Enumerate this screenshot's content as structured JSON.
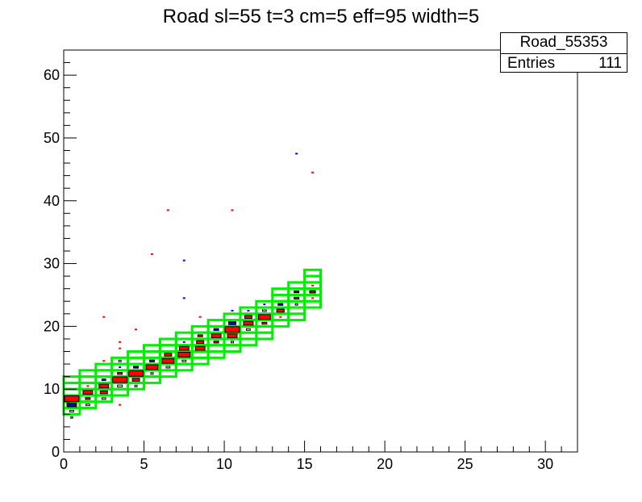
{
  "title": "Road sl=55 t=3 cm=5 eff=95 width=5",
  "stats": {
    "name": "Road_55353",
    "entries_label": "Entries",
    "entries_value": "111"
  },
  "colors": {
    "road": "#00ee00",
    "red": "#ff0000",
    "blue": "#0000ff",
    "frame": "#000000"
  },
  "chart_data": {
    "type": "heatmap",
    "title": "Road sl=55 t=3 cm=5 eff=95 width=5",
    "xlabel": "",
    "ylabel": "",
    "xlim": [
      0,
      32
    ],
    "ylim": [
      0,
      64
    ],
    "x_ticks": [
      0,
      5,
      10,
      15,
      20,
      25,
      30
    ],
    "y_ticks": [
      0,
      10,
      20,
      30,
      40,
      50,
      60
    ],
    "road_boxes": [
      {
        "x": 0.5,
        "y_low": 6.5,
        "y_high": 12.5
      },
      {
        "x": 1.5,
        "y_low": 7.5,
        "y_high": 13.5
      },
      {
        "x": 2.5,
        "y_low": 8.5,
        "y_high": 14.5
      },
      {
        "x": 3.5,
        "y_low": 9.5,
        "y_high": 15.5
      },
      {
        "x": 4.5,
        "y_low": 10.5,
        "y_high": 16.5
      },
      {
        "x": 5.5,
        "y_low": 11.5,
        "y_high": 17.5
      },
      {
        "x": 6.5,
        "y_low": 12.5,
        "y_high": 18.5
      },
      {
        "x": 7.5,
        "y_low": 13.5,
        "y_high": 19.5
      },
      {
        "x": 8.5,
        "y_low": 14.5,
        "y_high": 20.5
      },
      {
        "x": 9.5,
        "y_low": 15.5,
        "y_high": 21.5
      },
      {
        "x": 10.5,
        "y_low": 16.5,
        "y_high": 22.5
      },
      {
        "x": 11.5,
        "y_low": 17.5,
        "y_high": 23.5
      },
      {
        "x": 12.5,
        "y_low": 18.5,
        "y_high": 24.5
      },
      {
        "x": 13.5,
        "y_low": 20.5,
        "y_high": 26.5
      },
      {
        "x": 14.5,
        "y_low": 21.5,
        "y_high": 27.5
      },
      {
        "x": 15.5,
        "y_low": 23.5,
        "y_high": 29.5
      }
    ],
    "hits_red": [
      {
        "x": 0.5,
        "y": 8.5,
        "w": 3
      },
      {
        "x": 0.5,
        "y": 7.5,
        "w": 2
      },
      {
        "x": 1.5,
        "y": 9.5,
        "w": 2
      },
      {
        "x": 1.5,
        "y": 8.5,
        "w": 1
      },
      {
        "x": 1.5,
        "y": 10.5,
        "w": 0.5
      },
      {
        "x": 2.5,
        "y": 10.5,
        "w": 2
      },
      {
        "x": 2.5,
        "y": 9.5,
        "w": 1.5
      },
      {
        "x": 2.5,
        "y": 14.5,
        "w": 0.5
      },
      {
        "x": 2.5,
        "y": 21.5,
        "w": 0.5
      },
      {
        "x": 3.5,
        "y": 11.5,
        "w": 3
      },
      {
        "x": 3.5,
        "y": 12.5,
        "w": 1
      },
      {
        "x": 3.5,
        "y": 16.5,
        "w": 0.5
      },
      {
        "x": 3.5,
        "y": 17.5,
        "w": 0.5
      },
      {
        "x": 3.5,
        "y": 7.5,
        "w": 0.5
      },
      {
        "x": 4.5,
        "y": 12.5,
        "w": 3
      },
      {
        "x": 4.5,
        "y": 11.5,
        "w": 1.5
      },
      {
        "x": 4.5,
        "y": 19.5,
        "w": 0.5
      },
      {
        "x": 5.5,
        "y": 13.5,
        "w": 2.5
      },
      {
        "x": 5.5,
        "y": 31.5,
        "w": 0.5
      },
      {
        "x": 6.5,
        "y": 14.5,
        "w": 2.5
      },
      {
        "x": 6.5,
        "y": 15.5,
        "w": 1.5
      },
      {
        "x": 6.5,
        "y": 38.5,
        "w": 0.5
      },
      {
        "x": 7.5,
        "y": 15.5,
        "w": 2.5
      },
      {
        "x": 7.5,
        "y": 16.5,
        "w": 2
      },
      {
        "x": 8.5,
        "y": 16.5,
        "w": 2
      },
      {
        "x": 8.5,
        "y": 17.5,
        "w": 1.5
      },
      {
        "x": 8.5,
        "y": 18.5,
        "w": 1
      },
      {
        "x": 8.5,
        "y": 21.5,
        "w": 0.5
      },
      {
        "x": 9.5,
        "y": 18.5,
        "w": 2
      },
      {
        "x": 9.5,
        "y": 17.5,
        "w": 1
      },
      {
        "x": 10.5,
        "y": 19.5,
        "w": 3
      },
      {
        "x": 10.5,
        "y": 18.5,
        "w": 2
      },
      {
        "x": 10.5,
        "y": 38.5,
        "w": 0.5
      },
      {
        "x": 11.5,
        "y": 20.5,
        "w": 2
      },
      {
        "x": 11.5,
        "y": 21.5,
        "w": 1.5
      },
      {
        "x": 12.5,
        "y": 21.5,
        "w": 2.5
      },
      {
        "x": 12.5,
        "y": 20.5,
        "w": 1
      },
      {
        "x": 13.5,
        "y": 22.5,
        "w": 1.5
      },
      {
        "x": 13.5,
        "y": 21.5,
        "w": 0.5
      },
      {
        "x": 14.5,
        "y": 24.5,
        "w": 1
      },
      {
        "x": 15.5,
        "y": 25.5,
        "w": 1
      },
      {
        "x": 15.5,
        "y": 26.5,
        "w": 0.5
      },
      {
        "x": 15.5,
        "y": 24.5,
        "w": 0.5
      },
      {
        "x": 15.5,
        "y": 44.5,
        "w": 0.5
      }
    ],
    "hits_blue": [
      {
        "x": 0.5,
        "y": 7.5,
        "w": 1.5
      },
      {
        "x": 2.5,
        "y": 11.5,
        "w": 0.5
      },
      {
        "x": 3.5,
        "y": 13.5,
        "w": 0.5
      },
      {
        "x": 4.5,
        "y": 13.5,
        "w": 1
      },
      {
        "x": 5.5,
        "y": 14.5,
        "w": 1
      },
      {
        "x": 7.5,
        "y": 17.5,
        "w": 0.5
      },
      {
        "x": 7.5,
        "y": 24.5,
        "w": 0.5
      },
      {
        "x": 7.5,
        "y": 30.5,
        "w": 0.5
      },
      {
        "x": 9.5,
        "y": 19.5,
        "w": 1
      },
      {
        "x": 10.5,
        "y": 20.5,
        "w": 1.5
      },
      {
        "x": 10.5,
        "y": 22.5,
        "w": 0.5
      },
      {
        "x": 11.5,
        "y": 22.5,
        "w": 0.5
      },
      {
        "x": 12.5,
        "y": 23.5,
        "w": 0.5
      },
      {
        "x": 13.5,
        "y": 23.5,
        "w": 1
      },
      {
        "x": 14.5,
        "y": 25.5,
        "w": 1
      },
      {
        "x": 14.5,
        "y": 47.5,
        "w": 0.5
      }
    ],
    "hits_outline": [
      {
        "x": 0.5,
        "y": 6.5,
        "w": 0.8
      },
      {
        "x": 0.5,
        "y": 5.5,
        "w": 0.4
      },
      {
        "x": 1.5,
        "y": 7.5,
        "w": 0.8
      },
      {
        "x": 2.5,
        "y": 11.5,
        "w": 0.8
      },
      {
        "x": 2.5,
        "y": 8.5,
        "w": 0.8
      },
      {
        "x": 3.5,
        "y": 10.5,
        "w": 1
      },
      {
        "x": 3.5,
        "y": 14.5,
        "w": 0.5
      },
      {
        "x": 4.5,
        "y": 10.5,
        "w": 0.5
      },
      {
        "x": 5.5,
        "y": 12.5,
        "w": 0.5
      },
      {
        "x": 6.5,
        "y": 13.5,
        "w": 0.8
      },
      {
        "x": 7.5,
        "y": 14.5,
        "w": 0.8
      },
      {
        "x": 10.5,
        "y": 17.5,
        "w": 0.5
      },
      {
        "x": 11.5,
        "y": 19.5,
        "w": 0.8
      },
      {
        "x": 12.5,
        "y": 22.5,
        "w": 0.8
      },
      {
        "x": 13.5,
        "y": 22.5,
        "w": 1.5
      },
      {
        "x": 14.5,
        "y": 23.5,
        "w": 0.5
      },
      {
        "x": 15.5,
        "y": 25.5,
        "w": 1.2
      }
    ]
  }
}
